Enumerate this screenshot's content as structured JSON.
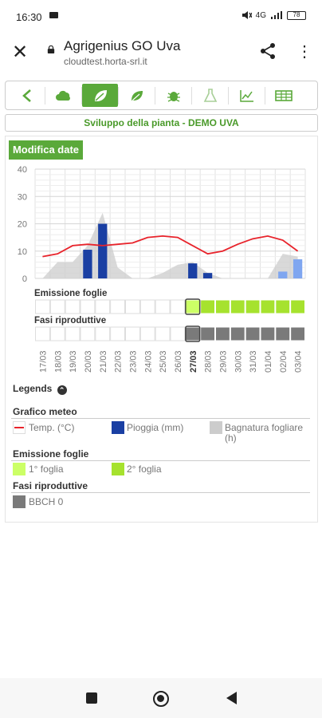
{
  "status": {
    "time": "16:30",
    "battery": "78",
    "signal": "4G"
  },
  "browser": {
    "title": "Agrigenius GO Uva",
    "url": "cloudtest.horta-srl.it"
  },
  "page": {
    "subtitle": "Sviluppo della pianta - DEMO UVA",
    "edit_dates_button": "Modifica date"
  },
  "nav": {
    "icons": [
      "back-icon",
      "weather-icon",
      "plant-icon",
      "leaf-icon",
      "bug-icon",
      "flask-icon",
      "chart-line-icon",
      "table-icon"
    ],
    "active_index": 2
  },
  "colors": {
    "accent": "#5aa93a",
    "temp": "#e8232b",
    "rain": "#1a3fa3",
    "rain_light": "#7fa6f0",
    "wetness": "#cccccc",
    "leaf1": "#ccff66",
    "leaf2": "#a6e22e",
    "bbch": "#7a7a7a"
  },
  "chart_data": {
    "type": "bar",
    "x": [
      "17/03",
      "18/03",
      "19/03",
      "20/03",
      "21/03",
      "22/03",
      "23/03",
      "24/03",
      "25/03",
      "26/03",
      "27/03",
      "28/03",
      "29/03",
      "30/03",
      "31/03",
      "01/04",
      "02/04",
      "03/04"
    ],
    "highlight_x": "27/03",
    "ylim": [
      0,
      40
    ],
    "yticks": [
      0,
      10,
      20,
      30,
      40
    ],
    "grid": true,
    "series": [
      {
        "name": "Temp. (°C)",
        "kind": "line",
        "values": [
          8,
          9,
          12,
          12.5,
          12,
          12.5,
          13,
          15,
          15.5,
          15,
          12,
          9,
          10,
          12.5,
          14.5,
          15.5,
          14,
          10
        ]
      },
      {
        "name": "Pioggia (mm)",
        "kind": "bar",
        "values": [
          0,
          0,
          0,
          10.5,
          20,
          0,
          0,
          0,
          0,
          0,
          5.5,
          2,
          0,
          0,
          0,
          0,
          2.5,
          7
        ],
        "forecast_from": "02/04"
      },
      {
        "name": "Bagnatura fogliare (h)",
        "kind": "area",
        "values": [
          0,
          6,
          6,
          12,
          24,
          4,
          0,
          0,
          2,
          5,
          6,
          2,
          0,
          0,
          0,
          0,
          9,
          8
        ]
      }
    ],
    "rows": [
      {
        "label": "Emissione foglie",
        "states": [
          "empty",
          "empty",
          "empty",
          "empty",
          "empty",
          "empty",
          "empty",
          "empty",
          "empty",
          "empty",
          "leaf1",
          "leaf2",
          "leaf2",
          "leaf2",
          "leaf2",
          "leaf2",
          "leaf2",
          "leaf2"
        ]
      },
      {
        "label": "Fasi riproduttive",
        "states": [
          "empty",
          "empty",
          "empty",
          "empty",
          "empty",
          "empty",
          "empty",
          "empty",
          "empty",
          "empty",
          "bbch",
          "bbch",
          "bbch",
          "bbch",
          "bbch",
          "bbch",
          "bbch",
          "bbch"
        ]
      }
    ]
  },
  "legend": {
    "title": "Legends",
    "groups": [
      {
        "title": "Grafico meteo",
        "items": [
          "Temp. (°C)",
          "Pioggia (mm)",
          "Bagnatura fogliare (h)"
        ]
      },
      {
        "title": "Emissione foglie",
        "items": [
          "1° foglia",
          "2° foglia"
        ]
      },
      {
        "title": "Fasi riproduttive",
        "items": [
          "BBCH 0"
        ]
      }
    ]
  }
}
